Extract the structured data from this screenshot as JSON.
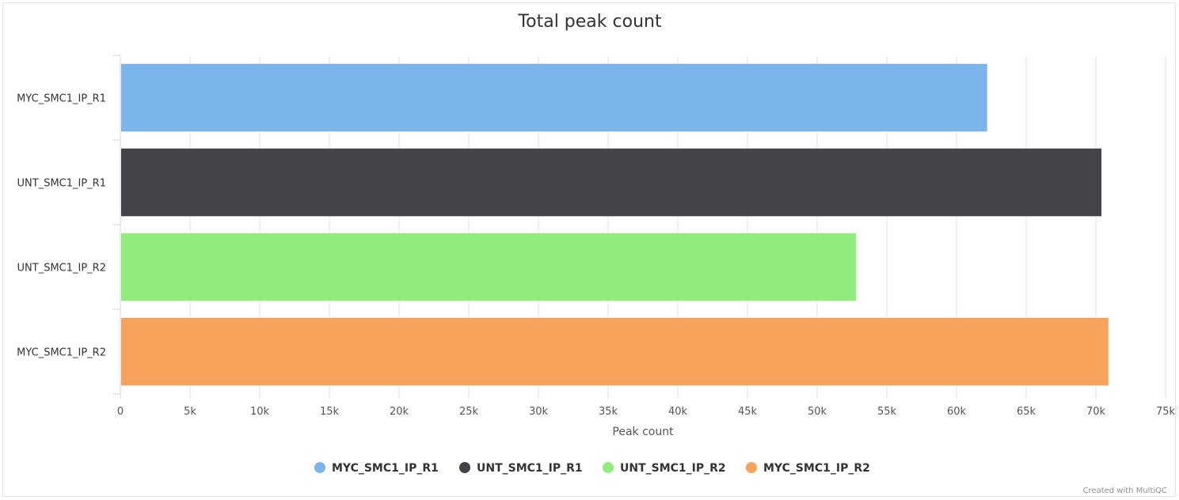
{
  "chart_data": {
    "type": "bar",
    "orientation": "horizontal",
    "title": "Total peak count",
    "xlabel": "Peak count",
    "ylabel": "",
    "xlim": [
      0,
      75000
    ],
    "x_ticks": [
      0,
      5000,
      10000,
      15000,
      20000,
      25000,
      30000,
      35000,
      40000,
      45000,
      50000,
      55000,
      60000,
      65000,
      70000,
      75000
    ],
    "x_tick_labels": [
      "0",
      "5k",
      "10k",
      "15k",
      "20k",
      "25k",
      "30k",
      "35k",
      "40k",
      "45k",
      "50k",
      "55k",
      "60k",
      "65k",
      "70k",
      "75k"
    ],
    "grid": true,
    "legend_position": "bottom",
    "categories": [
      "MYC_SMC1_IP_R1",
      "UNT_SMC1_IP_R1",
      "UNT_SMC1_IP_R2",
      "MYC_SMC1_IP_R2"
    ],
    "values": [
      62200,
      70400,
      52800,
      70900
    ],
    "colors": [
      "#7cb5ec",
      "#434348",
      "#90ed7d",
      "#f7a35c"
    ],
    "legend": [
      "MYC_SMC1_IP_R1",
      "UNT_SMC1_IP_R1",
      "UNT_SMC1_IP_R2",
      "MYC_SMC1_IP_R2"
    ],
    "credit": "Created with MultiQC"
  }
}
